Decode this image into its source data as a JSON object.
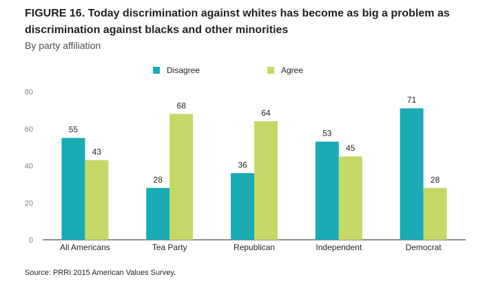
{
  "chart_data": {
    "type": "bar",
    "title": "FIGURE 16. Today discrimination against whites has become as big a problem as discrimination against blacks and other minorities",
    "subtitle": "By party affiliation",
    "categories": [
      "All Americans",
      "Tea Party",
      "Republican",
      "Independent",
      "Democrat"
    ],
    "series": [
      {
        "name": "Disagree",
        "color": "#1aabb5",
        "values": [
          55,
          28,
          36,
          53,
          71
        ]
      },
      {
        "name": "Agree",
        "color": "#c4d867",
        "values": [
          43,
          68,
          64,
          45,
          28
        ]
      }
    ],
    "ylim": [
      0,
      80
    ],
    "yticks": [
      "0",
      "20",
      "40",
      "60",
      "80"
    ],
    "grid": false,
    "legend": "top-center",
    "source": "Source: PRRI 2015 American Values Survey."
  }
}
